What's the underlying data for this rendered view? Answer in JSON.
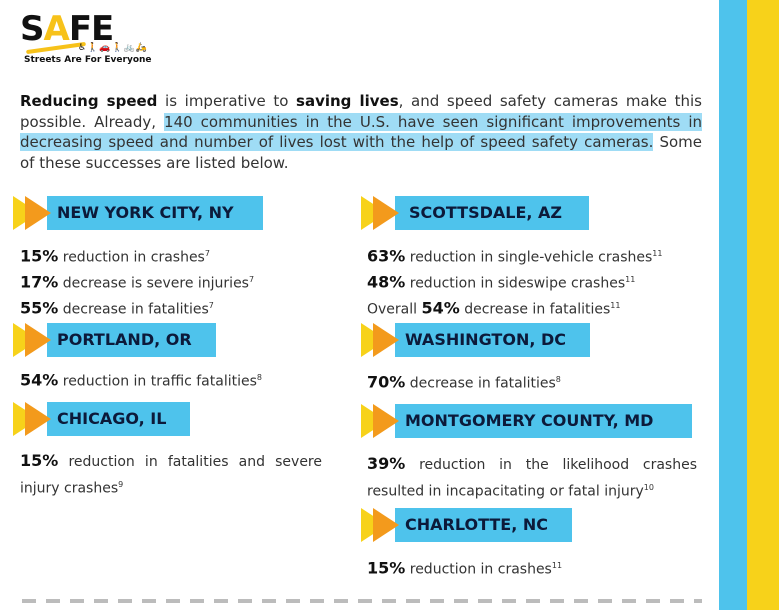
{
  "logo": {
    "word_s": "S",
    "word_a": "A",
    "word_fe": "FE",
    "tagline": "Streets Are For Everyone",
    "icons": "♿🚶🚗🚶🚲🛵"
  },
  "intro": {
    "p1": "Reducing speed",
    "p2": " is imperative to ",
    "p3": "saving lives",
    "p4": ", and speed safety cameras make this possible. Already, ",
    "p5": "140 communities in the U.S. have seen significant improvements in decreasing speed and number of lives lost with the help of speed safety cameras.",
    "p6": " Some of these successes are listed below."
  },
  "cities": {
    "nyc": {
      "name": "NEW YORK CITY, NY",
      "stats": [
        {
          "pct": "15%",
          "text": " reduction in crashes",
          "ref": "7"
        },
        {
          "pct": "17%",
          "text": " decrease is severe injuries",
          "ref": "7"
        },
        {
          "pct": "55%",
          "text": " decrease in fatalities",
          "ref": "7"
        }
      ]
    },
    "portland": {
      "name": "PORTLAND, OR",
      "stats": [
        {
          "pct": "54%",
          "text": " reduction in traffic fatalities",
          "ref": "8"
        }
      ]
    },
    "chicago": {
      "name": "CHICAGO, IL",
      "stats": [
        {
          "pct": "15%",
          "text": " reduction in fatalities and severe injury crashes",
          "ref": "9"
        }
      ]
    },
    "scottsdale": {
      "name": "SCOTTSDALE, AZ",
      "stats": [
        {
          "pct": "63%",
          "text": " reduction in single-vehicle crashes",
          "ref": "11"
        },
        {
          "pct": "48%",
          "text": " reduction in sideswipe crashes",
          "ref": "11"
        },
        {
          "prefix": "Overall ",
          "pct": "54%",
          "text": " decrease in fatalities",
          "ref": "11"
        }
      ]
    },
    "washington": {
      "name": "WASHINGTON, DC",
      "stats": [
        {
          "pct": "70%",
          "text": " decrease in fatalities",
          "ref": "8"
        }
      ]
    },
    "montgomery": {
      "name": "MONTGOMERY COUNTY, MD",
      "stats": [
        {
          "pct": "39%",
          "text": " reduction in the likelihood crashes resulted in incapacitating or fatal injury",
          "ref": "10"
        }
      ]
    },
    "charlotte": {
      "name": "CHARLOTTE, NC",
      "stats": [
        {
          "pct": "15%",
          "text": " reduction in crashes",
          "ref": "11"
        }
      ]
    }
  },
  "colors": {
    "accent_blue": "#4ec3ec",
    "accent_yellow": "#f7d21a",
    "accent_orange": "#f39a1c",
    "highlight": "#9fdcf5"
  }
}
